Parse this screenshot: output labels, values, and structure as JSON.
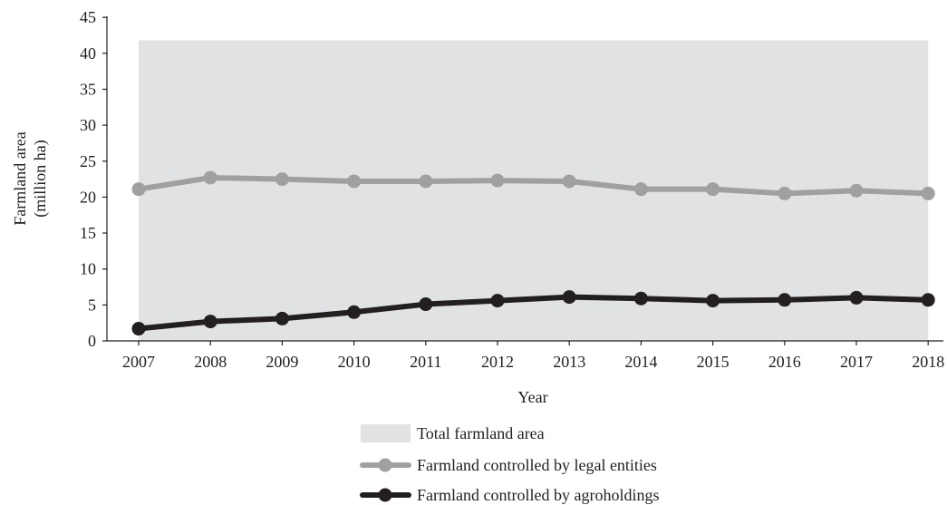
{
  "chart_data": {
    "type": "line",
    "title": "",
    "xlabel": "Year",
    "ylabel": [
      "Farmland area",
      "(million ha)"
    ],
    "ylim": [
      0,
      45
    ],
    "yticks": [
      0,
      5,
      10,
      15,
      20,
      25,
      30,
      35,
      40,
      45
    ],
    "categories": [
      "2007",
      "2008",
      "2009",
      "2010",
      "2011",
      "2012",
      "2013",
      "2014",
      "2015",
      "2016",
      "2017",
      "2018"
    ],
    "legend_position": "bottom-center",
    "grid": false,
    "series": [
      {
        "name": "Total farmland area",
        "type": "area",
        "color": "#e1e2e3",
        "values": [
          41.8,
          41.8,
          41.8,
          41.8,
          41.8,
          41.8,
          41.8,
          41.8,
          41.8,
          41.8,
          41.8,
          41.8
        ]
      },
      {
        "name": "Farmland controlled by legal entities",
        "type": "line",
        "color": "#a0a0a0",
        "values": [
          21.1,
          22.7,
          22.5,
          22.2,
          22.2,
          22.3,
          22.2,
          21.1,
          21.1,
          20.5,
          20.9,
          20.5
        ]
      },
      {
        "name": "Farmland controlled by agroholdings",
        "type": "line",
        "color": "#231f20",
        "values": [
          1.7,
          2.7,
          3.1,
          4.0,
          5.1,
          5.6,
          6.1,
          5.9,
          5.6,
          5.7,
          6.0,
          5.7
        ]
      }
    ]
  }
}
